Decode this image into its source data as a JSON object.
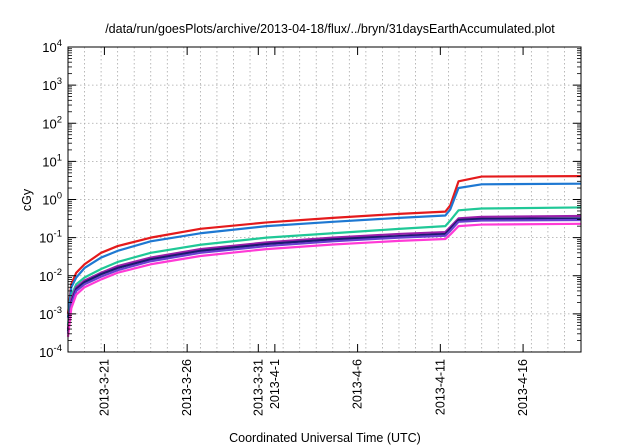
{
  "chart_data": {
    "type": "line",
    "title": "/data/run/goesPlots/archive/2013-04-18/flux/../bryn/31daysEarthAccumulated.plot",
    "xlabel": "Coordinated Universal Time (UTC)",
    "ylabel": "cGy",
    "yscale": "log",
    "ylim": [
      0.0001,
      10000
    ],
    "xlim": [
      0,
      31
    ],
    "grid": true,
    "legend": "none",
    "y_ticks": [
      {
        "base": "10",
        "exp": "-4",
        "value": 0.0001
      },
      {
        "base": "10",
        "exp": "-3",
        "value": 0.001
      },
      {
        "base": "10",
        "exp": "-2",
        "value": 0.01
      },
      {
        "base": "10",
        "exp": "-1",
        "value": 0.1
      },
      {
        "base": "10",
        "exp": "0",
        "value": 1
      },
      {
        "base": "10",
        "exp": "1",
        "value": 10
      },
      {
        "base": "10",
        "exp": "2",
        "value": 100
      },
      {
        "base": "10",
        "exp": "3",
        "value": 1000
      },
      {
        "base": "10",
        "exp": "4",
        "value": 10000
      }
    ],
    "x_ticks": [
      {
        "label": "2013-3-21",
        "x": 2.2
      },
      {
        "label": "2013-3-26",
        "x": 7.2
      },
      {
        "label": "2013-3-31",
        "x": 11.5
      },
      {
        "label": "2013-4-1",
        "x": 12.5
      },
      {
        "label": "2013-4-6",
        "x": 17.5
      },
      {
        "label": "2013-4-11",
        "x": 22.5
      },
      {
        "label": "2013-4-16",
        "x": 27.5
      }
    ],
    "x_minor_count": 31,
    "series": [
      {
        "name": "red",
        "color": "#e41a1c",
        "x": [
          0,
          0.2,
          0.5,
          1,
          2,
          3,
          5,
          8,
          12,
          16,
          20,
          22.8,
          23.1,
          23.6,
          25,
          31
        ],
        "values": [
          0.001,
          0.006,
          0.012,
          0.02,
          0.04,
          0.06,
          0.1,
          0.17,
          0.25,
          0.33,
          0.42,
          0.48,
          0.7,
          3.0,
          4.0,
          4.1
        ]
      },
      {
        "name": "blue",
        "color": "#1e78d2",
        "x": [
          0,
          0.2,
          0.5,
          1,
          2,
          3,
          5,
          8,
          12,
          16,
          20,
          22.8,
          23.1,
          23.6,
          25,
          31
        ],
        "values": [
          0.0008,
          0.005,
          0.009,
          0.016,
          0.03,
          0.045,
          0.08,
          0.13,
          0.2,
          0.26,
          0.33,
          0.38,
          0.55,
          2.0,
          2.5,
          2.6
        ]
      },
      {
        "name": "green",
        "color": "#20c897",
        "x": [
          0,
          0.2,
          0.5,
          1,
          2,
          3,
          5,
          8,
          12,
          16,
          20,
          22.8,
          23.1,
          23.6,
          25,
          31
        ],
        "values": [
          0.0005,
          0.003,
          0.006,
          0.009,
          0.015,
          0.023,
          0.04,
          0.065,
          0.1,
          0.13,
          0.17,
          0.2,
          0.28,
          0.52,
          0.58,
          0.62
        ]
      },
      {
        "name": "magenta",
        "color": "#9b1faa",
        "x": [
          0,
          0.2,
          0.5,
          1,
          2,
          3,
          5,
          8,
          12,
          16,
          20,
          22.8,
          23.1,
          23.6,
          25,
          31
        ],
        "values": [
          0.0004,
          0.0025,
          0.005,
          0.0075,
          0.012,
          0.018,
          0.03,
          0.05,
          0.075,
          0.1,
          0.125,
          0.14,
          0.19,
          0.32,
          0.35,
          0.37
        ]
      },
      {
        "name": "navy",
        "color": "#1a1a70",
        "x": [
          0,
          0.2,
          0.5,
          1,
          2,
          3,
          5,
          8,
          12,
          16,
          20,
          22.8,
          23.1,
          23.6,
          25,
          31
        ],
        "values": [
          0.00035,
          0.002,
          0.0045,
          0.0068,
          0.011,
          0.016,
          0.027,
          0.045,
          0.068,
          0.09,
          0.11,
          0.125,
          0.17,
          0.29,
          0.31,
          0.32
        ]
      },
      {
        "name": "purple",
        "color": "#6a3fd0",
        "x": [
          0,
          0.2,
          0.5,
          1,
          2,
          3,
          5,
          8,
          12,
          16,
          20,
          22.8,
          23.1,
          23.6,
          25,
          31
        ],
        "values": [
          0.0003,
          0.0018,
          0.004,
          0.006,
          0.0095,
          0.014,
          0.024,
          0.04,
          0.06,
          0.08,
          0.1,
          0.112,
          0.15,
          0.26,
          0.28,
          0.29
        ]
      },
      {
        "name": "pink",
        "color": "#ff3ad6",
        "x": [
          0,
          0.2,
          0.5,
          1,
          2,
          3,
          5,
          8,
          12,
          16,
          20,
          22.8,
          23.1,
          23.6,
          25,
          31
        ],
        "values": [
          0.00025,
          0.0014,
          0.0032,
          0.005,
          0.008,
          0.012,
          0.02,
          0.033,
          0.05,
          0.066,
          0.082,
          0.092,
          0.12,
          0.2,
          0.22,
          0.23
        ]
      }
    ]
  }
}
